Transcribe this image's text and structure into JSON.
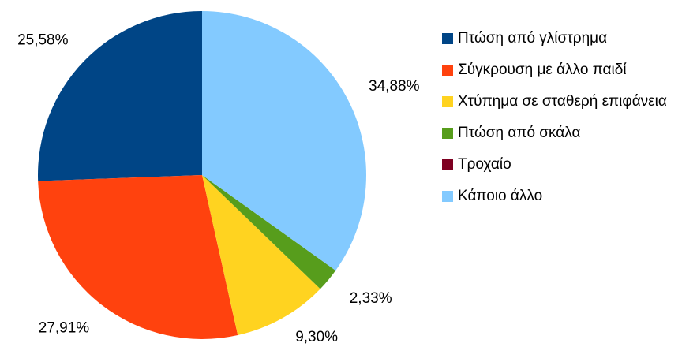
{
  "chart_data": {
    "type": "pie",
    "categories": [
      "Πτώση από γλίστρημα",
      "Σύγκρουση με άλλο παιδί",
      "Χτύπημα σε σταθερή επιφάνεια",
      "Πτώση από σκάλα",
      "Τροχαίο",
      "Κάποιο άλλο"
    ],
    "values": [
      25.58,
      27.91,
      9.3,
      2.33,
      0,
      34.88
    ],
    "value_labels": [
      "25,58%",
      "27,91%",
      "9,30%",
      "2,33%",
      null,
      "34,88%"
    ],
    "colors": [
      "#004586",
      "#ff420e",
      "#ffd320",
      "#579d1c",
      "#7e0021",
      "#83caff"
    ],
    "legend": "right"
  }
}
